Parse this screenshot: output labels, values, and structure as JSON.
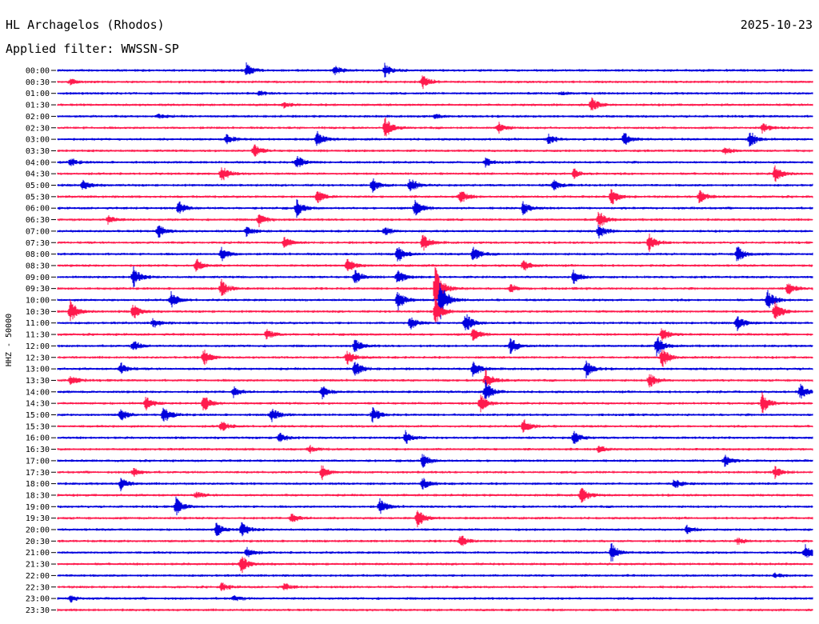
{
  "header": {
    "station": "HL Archagelos (Rhodos)",
    "date": "2025-10-23",
    "filter": "Applied filter: WWSSN-SP"
  },
  "chart_data": {
    "type": "line",
    "title": "HL Archagelos (Rhodos)",
    "subtitle": "Applied filter: WWSSN-SP",
    "ylabel": "HHZ - 50000",
    "xlabel": "",
    "date": "2025-10-23",
    "trace_colors": [
      "#0000dd",
      "#ff1a4d"
    ],
    "x_unit": "minutes past row start",
    "x_range": [
      0,
      30
    ],
    "grid": false,
    "legend": "none",
    "rows": [
      {
        "label": "00:00",
        "events": [
          {
            "t": 7.5,
            "a": 1.1
          },
          {
            "t": 11.0,
            "a": 0.7
          },
          {
            "t": 13.0,
            "a": 1.0
          }
        ]
      },
      {
        "label": "00:30",
        "events": [
          {
            "t": 0.5,
            "a": 0.4
          },
          {
            "t": 14.5,
            "a": 1.0
          }
        ]
      },
      {
        "label": "01:00",
        "events": [
          {
            "t": 8.0,
            "a": 0.3
          },
          {
            "t": 20.0,
            "a": 0.2
          }
        ]
      },
      {
        "label": "01:30",
        "events": [
          {
            "t": 9.0,
            "a": 0.4
          },
          {
            "t": 21.2,
            "a": 1.1
          }
        ]
      },
      {
        "label": "02:00",
        "events": [
          {
            "t": 4.0,
            "a": 0.3
          },
          {
            "t": 15.0,
            "a": 0.3
          }
        ]
      },
      {
        "label": "02:30",
        "events": [
          {
            "t": 13.0,
            "a": 1.5
          },
          {
            "t": 17.5,
            "a": 0.8
          },
          {
            "t": 28.0,
            "a": 0.7
          }
        ]
      },
      {
        "label": "03:00",
        "events": [
          {
            "t": 6.7,
            "a": 0.8
          },
          {
            "t": 10.3,
            "a": 1.2
          },
          {
            "t": 19.5,
            "a": 0.8
          },
          {
            "t": 22.5,
            "a": 1.0
          },
          {
            "t": 27.5,
            "a": 1.2
          }
        ]
      },
      {
        "label": "03:30",
        "events": [
          {
            "t": 7.8,
            "a": 1.0
          },
          {
            "t": 26.5,
            "a": 0.6
          }
        ]
      },
      {
        "label": "04:00",
        "events": [
          {
            "t": 0.5,
            "a": 0.6
          },
          {
            "t": 9.5,
            "a": 1.0
          },
          {
            "t": 17.0,
            "a": 0.6
          }
        ]
      },
      {
        "label": "04:30",
        "events": [
          {
            "t": 6.5,
            "a": 1.3
          },
          {
            "t": 20.5,
            "a": 0.8
          },
          {
            "t": 28.5,
            "a": 1.2
          }
        ]
      },
      {
        "label": "05:00",
        "events": [
          {
            "t": 1.0,
            "a": 0.8
          },
          {
            "t": 12.5,
            "a": 1.0
          },
          {
            "t": 14.0,
            "a": 1.1
          },
          {
            "t": 19.7,
            "a": 0.8
          }
        ]
      },
      {
        "label": "05:30",
        "events": [
          {
            "t": 10.3,
            "a": 1.0
          },
          {
            "t": 16.0,
            "a": 1.0
          },
          {
            "t": 22.0,
            "a": 1.2
          },
          {
            "t": 25.5,
            "a": 1.0
          }
        ]
      },
      {
        "label": "06:00",
        "events": [
          {
            "t": 4.8,
            "a": 1.0
          },
          {
            "t": 9.5,
            "a": 1.2
          },
          {
            "t": 14.2,
            "a": 1.3
          },
          {
            "t": 18.5,
            "a": 1.0
          }
        ]
      },
      {
        "label": "06:30",
        "events": [
          {
            "t": 2.0,
            "a": 0.6
          },
          {
            "t": 8.0,
            "a": 0.9
          },
          {
            "t": 21.5,
            "a": 1.3
          }
        ]
      },
      {
        "label": "07:00",
        "events": [
          {
            "t": 4.0,
            "a": 1.0
          },
          {
            "t": 7.5,
            "a": 0.7
          },
          {
            "t": 13.0,
            "a": 0.6
          },
          {
            "t": 21.5,
            "a": 1.0
          }
        ]
      },
      {
        "label": "07:30",
        "events": [
          {
            "t": 9.0,
            "a": 0.8
          },
          {
            "t": 14.5,
            "a": 1.2
          },
          {
            "t": 23.5,
            "a": 1.3
          }
        ]
      },
      {
        "label": "08:00",
        "events": [
          {
            "t": 6.5,
            "a": 1.0
          },
          {
            "t": 13.5,
            "a": 1.3
          },
          {
            "t": 16.5,
            "a": 1.2
          },
          {
            "t": 27.0,
            "a": 1.3
          }
        ]
      },
      {
        "label": "08:30",
        "events": [
          {
            "t": 5.5,
            "a": 1.0
          },
          {
            "t": 11.5,
            "a": 1.0
          },
          {
            "t": 18.5,
            "a": 0.8
          }
        ]
      },
      {
        "label": "09:00",
        "events": [
          {
            "t": 3.0,
            "a": 1.5
          },
          {
            "t": 11.8,
            "a": 1.0
          },
          {
            "t": 13.5,
            "a": 1.1
          },
          {
            "t": 20.5,
            "a": 1.0
          }
        ]
      },
      {
        "label": "09:30",
        "events": [
          {
            "t": 6.5,
            "a": 1.3
          },
          {
            "t": 15.0,
            "a": 3.5
          },
          {
            "t": 18.0,
            "a": 0.6
          },
          {
            "t": 29.0,
            "a": 1.0
          }
        ]
      },
      {
        "label": "10:00",
        "events": [
          {
            "t": 4.5,
            "a": 1.2
          },
          {
            "t": 13.5,
            "a": 1.5
          },
          {
            "t": 15.2,
            "a": 3.0
          },
          {
            "t": 28.2,
            "a": 1.5
          }
        ]
      },
      {
        "label": "10:30",
        "events": [
          {
            "t": 0.5,
            "a": 1.6
          },
          {
            "t": 3.0,
            "a": 1.2
          },
          {
            "t": 15.0,
            "a": 2.0
          },
          {
            "t": 28.5,
            "a": 1.6
          }
        ]
      },
      {
        "label": "11:00",
        "events": [
          {
            "t": 3.8,
            "a": 0.7
          },
          {
            "t": 14.0,
            "a": 1.0
          },
          {
            "t": 16.2,
            "a": 1.5
          },
          {
            "t": 27.0,
            "a": 1.2
          }
        ]
      },
      {
        "label": "11:30",
        "events": [
          {
            "t": 8.3,
            "a": 0.8
          },
          {
            "t": 16.5,
            "a": 1.0
          },
          {
            "t": 24.0,
            "a": 1.0
          }
        ]
      },
      {
        "label": "12:00",
        "events": [
          {
            "t": 3.0,
            "a": 0.8
          },
          {
            "t": 11.8,
            "a": 1.0
          },
          {
            "t": 18.0,
            "a": 1.2
          },
          {
            "t": 23.8,
            "a": 1.5
          }
        ]
      },
      {
        "label": "12:30",
        "events": [
          {
            "t": 5.8,
            "a": 1.2
          },
          {
            "t": 11.5,
            "a": 1.2
          },
          {
            "t": 24.0,
            "a": 1.5
          }
        ]
      },
      {
        "label": "13:00",
        "events": [
          {
            "t": 2.5,
            "a": 0.9
          },
          {
            "t": 11.8,
            "a": 1.3
          },
          {
            "t": 16.5,
            "a": 1.2
          },
          {
            "t": 21.0,
            "a": 1.2
          }
        ]
      },
      {
        "label": "13:30",
        "events": [
          {
            "t": 0.5,
            "a": 0.8
          },
          {
            "t": 17.0,
            "a": 1.5
          },
          {
            "t": 23.5,
            "a": 1.1
          }
        ]
      },
      {
        "label": "14:00",
        "events": [
          {
            "t": 7.0,
            "a": 0.8
          },
          {
            "t": 10.5,
            "a": 1.0
          },
          {
            "t": 17.0,
            "a": 1.5
          },
          {
            "t": 29.5,
            "a": 1.1
          }
        ]
      },
      {
        "label": "14:30",
        "events": [
          {
            "t": 3.5,
            "a": 1.0
          },
          {
            "t": 5.8,
            "a": 1.2
          },
          {
            "t": 16.8,
            "a": 1.3
          },
          {
            "t": 28.0,
            "a": 1.5
          }
        ]
      },
      {
        "label": "15:00",
        "events": [
          {
            "t": 2.5,
            "a": 0.9
          },
          {
            "t": 4.2,
            "a": 1.3
          },
          {
            "t": 8.5,
            "a": 1.1
          },
          {
            "t": 12.5,
            "a": 1.1
          }
        ]
      },
      {
        "label": "15:30",
        "events": [
          {
            "t": 6.5,
            "a": 0.8
          },
          {
            "t": 18.5,
            "a": 1.0
          }
        ]
      },
      {
        "label": "16:00",
        "events": [
          {
            "t": 8.8,
            "a": 0.8
          },
          {
            "t": 13.8,
            "a": 1.0
          },
          {
            "t": 20.5,
            "a": 1.0
          }
        ]
      },
      {
        "label": "16:30",
        "events": [
          {
            "t": 10.0,
            "a": 0.5
          },
          {
            "t": 21.5,
            "a": 0.6
          }
        ]
      },
      {
        "label": "17:00",
        "events": [
          {
            "t": 14.5,
            "a": 1.0
          },
          {
            "t": 26.5,
            "a": 0.8
          }
        ]
      },
      {
        "label": "17:30",
        "events": [
          {
            "t": 3.0,
            "a": 0.6
          },
          {
            "t": 10.5,
            "a": 1.0
          },
          {
            "t": 28.5,
            "a": 0.8
          }
        ]
      },
      {
        "label": "18:00",
        "events": [
          {
            "t": 2.5,
            "a": 0.9
          },
          {
            "t": 14.5,
            "a": 0.8
          },
          {
            "t": 24.5,
            "a": 0.8
          }
        ]
      },
      {
        "label": "18:30",
        "events": [
          {
            "t": 5.5,
            "a": 0.5
          },
          {
            "t": 20.8,
            "a": 1.3
          }
        ]
      },
      {
        "label": "19:00",
        "events": [
          {
            "t": 4.7,
            "a": 1.3
          },
          {
            "t": 12.8,
            "a": 1.1
          }
        ]
      },
      {
        "label": "19:30",
        "events": [
          {
            "t": 9.3,
            "a": 0.8
          },
          {
            "t": 14.3,
            "a": 1.3
          }
        ]
      },
      {
        "label": "20:00",
        "events": [
          {
            "t": 6.3,
            "a": 1.0
          },
          {
            "t": 7.3,
            "a": 1.2
          },
          {
            "t": 25.0,
            "a": 0.6
          }
        ]
      },
      {
        "label": "20:30",
        "events": [
          {
            "t": 16.0,
            "a": 0.9
          },
          {
            "t": 27.0,
            "a": 0.5
          }
        ]
      },
      {
        "label": "21:00",
        "events": [
          {
            "t": 7.5,
            "a": 0.8
          },
          {
            "t": 22.0,
            "a": 1.3
          },
          {
            "t": 29.7,
            "a": 1.2
          }
        ]
      },
      {
        "label": "21:30",
        "events": [
          {
            "t": 7.3,
            "a": 1.3
          }
        ]
      },
      {
        "label": "22:00",
        "events": [
          {
            "t": 28.5,
            "a": 0.3
          }
        ]
      },
      {
        "label": "22:30",
        "events": [
          {
            "t": 6.5,
            "a": 0.6
          },
          {
            "t": 9.0,
            "a": 0.5
          }
        ]
      },
      {
        "label": "23:00",
        "events": [
          {
            "t": 0.5,
            "a": 0.5
          },
          {
            "t": 7.0,
            "a": 0.4
          }
        ]
      },
      {
        "label": "23:30",
        "events": []
      }
    ]
  }
}
